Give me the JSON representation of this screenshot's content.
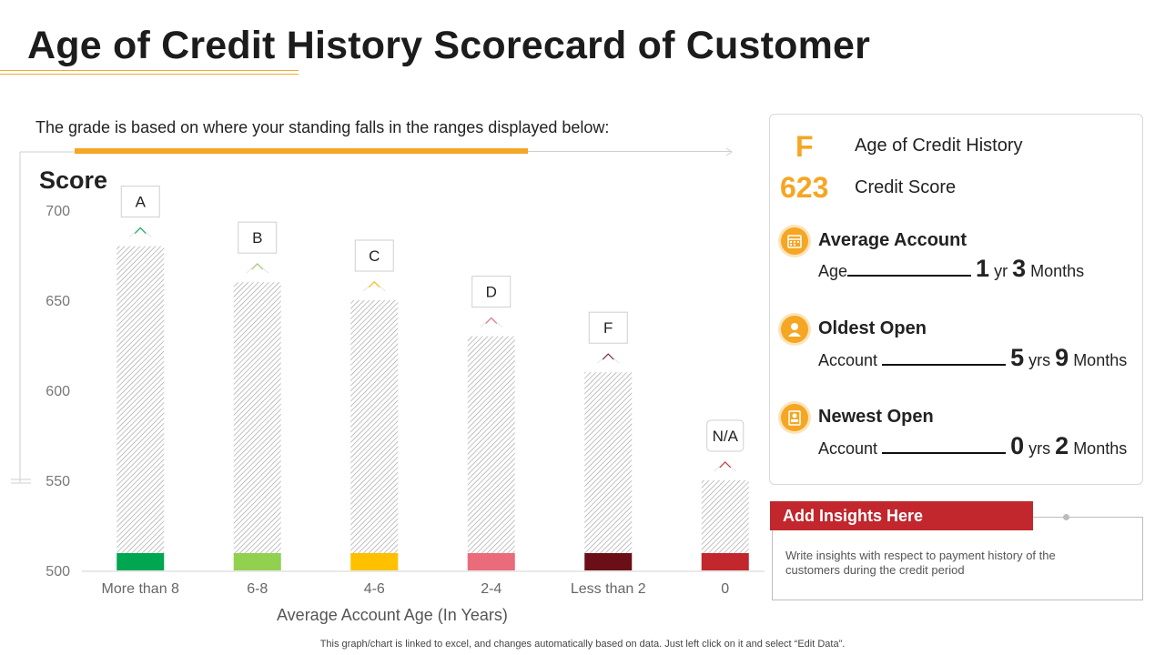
{
  "title": "Age of Credit History Scorecard of Customer",
  "subtitle": "The grade is based on where your standing falls in the ranges displayed below:",
  "footnote": "This graph/chart is linked to excel,  and changes automatically based on data. Just left click on it and select “Edit Data”.",
  "colors": {
    "accent": "#f5a623",
    "red": "#c1272d"
  },
  "chart_data": {
    "type": "bar",
    "ylabel": "Score",
    "xlabel": "Average Account Age (In Years)",
    "ylim": [
      500,
      700
    ],
    "yticks": [
      500,
      550,
      600,
      650,
      700
    ],
    "categories": [
      "More than 8",
      "6-8",
      "4-6",
      "2-4",
      "Less than 2",
      "0"
    ],
    "values": [
      680,
      660,
      650,
      630,
      610,
      550
    ],
    "grades": [
      "A",
      "B",
      "C",
      "D",
      "F",
      "N/A"
    ],
    "colors": [
      "#00a650",
      "#92d050",
      "#ffc000",
      "#ea6b7a",
      "#6b0f17",
      "#c1272d"
    ]
  },
  "panel": {
    "grade": "F",
    "grade_label": "Age of Credit History",
    "score": "623",
    "score_label": "Credit Score",
    "items": [
      {
        "icon": "calendar-icon",
        "head": "Average Account",
        "prefix": "Age",
        "num1": "1",
        "unit1": "yr",
        "num2": "3",
        "unit2": "Months"
      },
      {
        "icon": "user-icon",
        "head": "Oldest Open",
        "prefix": "Account",
        "num1": "5",
        "unit1": "yrs",
        "num2": "9",
        "unit2": "Months"
      },
      {
        "icon": "user-card-icon",
        "head": "Newest Open",
        "prefix": "Account",
        "num1": "0",
        "unit1": "yrs",
        "num2": "2",
        "unit2": "Months"
      }
    ]
  },
  "insights": {
    "header": "Add Insights Here",
    "text": "Write insights with  respect to payment history of the customers during the credit period"
  }
}
